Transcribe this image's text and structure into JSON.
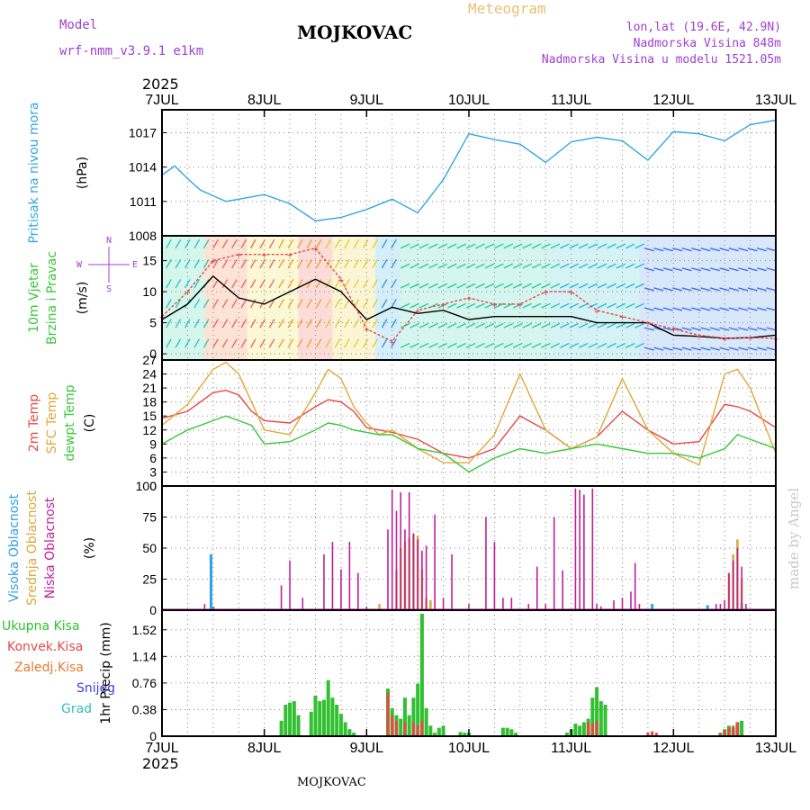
{
  "header": {
    "model_label": "Model",
    "model_name": "wrf-nmm_v3.9.1 e1km",
    "title": "MOJKOVAC",
    "meteogram": "Meteogram",
    "lonlat": "lon,lat (19.6E, 42.9N)",
    "elevation": "Nadmorska Visina 848m",
    "model_elevation": "Nadmorska Visina u modelu 1521.05m",
    "year_top": "2025",
    "year_bottom": "2025",
    "footer": "MOJKOVAC",
    "credit": "made by Angel"
  },
  "colors": {
    "pressure": "#30a8e0",
    "temp2m": "#e84848",
    "sfc": "#e0a838",
    "dewpt": "#38c838",
    "wind_speed": "#000000",
    "gust": "#e84848",
    "high_cloud": "#30a0e8",
    "mid_cloud": "#d8a838",
    "low_cloud": "#c0209a",
    "total_precip": "#30c030",
    "conv_precip": "#e84848",
    "frz_precip": "#e87830",
    "snow": "#4040e0",
    "hail": "#30c0c0"
  },
  "days": [
    "7JUL",
    "8JUL",
    "9JUL",
    "10JUL",
    "11JUL",
    "12JUL",
    "13JUL"
  ],
  "chart_data": [
    {
      "type": "line",
      "ylabel_lines": [
        "Pritisak na nivou mora",
        "(hPa)"
      ],
      "yticks": [
        1008,
        1011,
        1014,
        1017
      ],
      "ylim": [
        1008,
        1019
      ],
      "grid": true,
      "series": [
        {
          "x_hours": [
            0,
            3,
            6,
            9,
            12,
            15,
            18,
            24,
            30,
            36,
            42,
            48,
            54,
            60,
            66,
            72,
            78,
            84,
            90,
            96,
            102,
            108,
            114,
            120,
            126,
            132,
            138,
            144
          ],
          "values": [
            1013.3,
            1014.1,
            1013.0,
            1012.0,
            1011.5,
            1011.0,
            1011.2,
            1011.6,
            1010.8,
            1009.3,
            1009.6,
            1010.3,
            1011.2,
            1010.0,
            1012.9,
            1016.9,
            1016.4,
            1016.0,
            1014.4,
            1016.2,
            1016.6,
            1016.3,
            1014.6,
            1017.1,
            1016.9,
            1016.3,
            1017.7,
            1018.1
          ]
        }
      ]
    },
    {
      "type": "line",
      "ylabel_lines": [
        "10m Vjetar",
        "Brzina i Pravac",
        "(m/s)"
      ],
      "compass": [
        "N",
        "W",
        "E",
        "S"
      ],
      "yticks": [
        0,
        5,
        10,
        15
      ],
      "ylim": [
        -1,
        19
      ],
      "grid": true,
      "series": [
        {
          "name": "speed",
          "x_hours": [
            0,
            6,
            12,
            18,
            24,
            30,
            36,
            42,
            48,
            54,
            60,
            66,
            72,
            78,
            84,
            90,
            96,
            102,
            108,
            114,
            120,
            126,
            132,
            138,
            144
          ],
          "values": [
            5.5,
            8,
            12.5,
            9,
            8,
            10,
            12,
            10,
            5.5,
            7.5,
            6.5,
            7,
            5.5,
            6,
            6,
            6,
            6,
            5,
            5,
            5,
            3,
            2.8,
            2.5,
            2.6,
            3
          ]
        },
        {
          "name": "gust",
          "x_hours": [
            0,
            6,
            12,
            18,
            24,
            30,
            36,
            42,
            48,
            54,
            60,
            66,
            72,
            78,
            84,
            90,
            96,
            102,
            108,
            114,
            120,
            126,
            132,
            138,
            144
          ],
          "values": [
            6,
            10,
            15,
            16,
            16,
            16,
            17,
            12,
            4,
            2,
            7,
            8,
            9,
            8,
            8,
            10,
            10,
            7,
            6,
            5,
            4,
            3,
            2.5,
            2.6,
            2.5
          ]
        }
      ]
    },
    {
      "type": "line",
      "ylabel_lines": [
        "2m Temp",
        "SFC Temp",
        "dewpt Temp",
        "(C)"
      ],
      "yticks": [
        0,
        3,
        6,
        9,
        12,
        15,
        18,
        21,
        24,
        27
      ],
      "ylim": [
        0,
        27
      ],
      "grid": true,
      "series": [
        {
          "name": "2m Temp",
          "x_hours": [
            0,
            6,
            12,
            15,
            18,
            21,
            24,
            30,
            36,
            39,
            42,
            45,
            48,
            51,
            54,
            60,
            66,
            72,
            78,
            84,
            90,
            96,
            102,
            108,
            114,
            120,
            126,
            132,
            135,
            138,
            144
          ],
          "values": [
            14.5,
            16,
            20,
            20.5,
            19.5,
            16,
            14,
            13.5,
            17,
            18.5,
            18,
            16,
            12.5,
            12,
            11.5,
            10,
            7,
            6,
            8,
            15,
            12,
            8,
            10.5,
            16,
            12,
            9,
            9.5,
            17.5,
            17,
            16,
            12.5
          ]
        },
        {
          "name": "SFC Temp",
          "x_hours": [
            0,
            6,
            12,
            15,
            18,
            21,
            24,
            30,
            36,
            39,
            42,
            45,
            48,
            51,
            54,
            60,
            66,
            72,
            78,
            84,
            90,
            96,
            102,
            108,
            114,
            120,
            126,
            132,
            135,
            138,
            144
          ],
          "values": [
            13,
            17.5,
            25,
            26.5,
            24,
            18,
            12,
            11,
            20,
            25,
            23,
            17,
            13.5,
            11,
            12,
            8,
            5,
            5,
            11,
            24,
            12,
            8,
            10.5,
            23,
            12,
            7,
            4.5,
            24,
            25,
            21,
            7
          ]
        },
        {
          "name": "dewpt Temp",
          "x_hours": [
            0,
            6,
            12,
            15,
            18,
            21,
            24,
            30,
            36,
            39,
            42,
            45,
            48,
            51,
            54,
            60,
            66,
            72,
            78,
            84,
            90,
            96,
            102,
            108,
            114,
            120,
            126,
            132,
            135,
            138,
            144
          ],
          "values": [
            9,
            12,
            14,
            15,
            14,
            13,
            9,
            9.5,
            12,
            13.5,
            13,
            12,
            11.5,
            11,
            11,
            8,
            7,
            3,
            6,
            8,
            7,
            8,
            9,
            8,
            7,
            7,
            6,
            8,
            11,
            10,
            8
          ]
        }
      ]
    },
    {
      "type": "bar",
      "ylabel_lines": [
        "Visoka Oblacnost",
        "Srednja Oblacnost",
        "Niska Oblacnost",
        "(%)"
      ],
      "yticks": [
        0,
        25,
        50,
        75,
        100
      ],
      "ylim": [
        0,
        100
      ],
      "grid": true,
      "series": [
        {
          "name": "Visoka Oblacnost",
          "x_hours": [
            11.5,
            12,
            115,
            128,
            136
          ],
          "values": [
            45,
            3,
            5,
            4,
            6
          ]
        },
        {
          "name": "Srednja Oblacnost",
          "x_hours": [
            51,
            55,
            56,
            57,
            58,
            59,
            60,
            61,
            62,
            63,
            133,
            134,
            135,
            136
          ],
          "values": [
            5,
            32,
            50,
            55,
            58,
            61,
            60,
            33,
            10,
            8,
            30,
            45,
            57,
            25
          ]
        },
        {
          "name": "Niska Oblacnost",
          "x_hours": [
            10,
            28,
            30,
            33,
            38,
            40,
            42,
            44,
            46,
            48,
            53,
            54,
            55,
            56,
            57,
            58,
            59,
            60,
            61,
            62,
            64,
            66,
            68,
            72,
            76,
            78,
            80,
            82,
            86,
            88,
            90,
            92,
            94,
            97,
            98,
            99,
            101,
            102,
            103,
            106,
            108,
            110,
            111,
            112,
            130,
            131,
            132,
            133,
            134,
            135,
            136,
            137
          ],
          "values": [
            5,
            20,
            40,
            10,
            45,
            55,
            33,
            55,
            30,
            3,
            65,
            97,
            80,
            95,
            65,
            95,
            62,
            57,
            48,
            52,
            77,
            10,
            45,
            5,
            75,
            55,
            10,
            10,
            5,
            35,
            5,
            75,
            32,
            98,
            97,
            93,
            98,
            5,
            3,
            8,
            10,
            15,
            38,
            5,
            5,
            5,
            8,
            30,
            40,
            50,
            35,
            5
          ]
        }
      ]
    },
    {
      "type": "bar",
      "ylabel_lines": [
        "1hr Precip (mm)"
      ],
      "legend": [
        "Ukupna Kisa",
        "Konvek.Kisa",
        "Zaledj.Kisa",
        "Snijeg",
        "Grad"
      ],
      "yticks": [
        0,
        0.38,
        0.76,
        1.14,
        1.52
      ],
      "ylim": [
        0,
        1.8
      ],
      "grid": true,
      "series": [
        {
          "name": "Ukupna Kisa",
          "x_hours": [
            28,
            29,
            30,
            31,
            32,
            35,
            36,
            37,
            38,
            39,
            40,
            41,
            42,
            43,
            44,
            45,
            53,
            54,
            55,
            56,
            57,
            58,
            59,
            60,
            61,
            62,
            63,
            64,
            65,
            66,
            70,
            71,
            72,
            80,
            81,
            82,
            83,
            95,
            96,
            97,
            98,
            99,
            100,
            101,
            102,
            103,
            104,
            131,
            132,
            133,
            134,
            135,
            136
          ],
          "values": [
            0.22,
            0.45,
            0.48,
            0.5,
            0.3,
            0.35,
            0.58,
            0.5,
            0.52,
            0.8,
            0.55,
            0.45,
            0.32,
            0.2,
            0.1,
            0.05,
            0.68,
            0.4,
            0.3,
            0.25,
            0.55,
            0.3,
            0.55,
            0.75,
            1.75,
            0.4,
            0.15,
            0.05,
            0.12,
            0.15,
            0.06,
            0.05,
            0.05,
            0.12,
            0.12,
            0.1,
            0.05,
            0.05,
            0.1,
            0.18,
            0.15,
            0.2,
            0.25,
            0.55,
            0.7,
            0.5,
            0.45,
            0.05,
            0.1,
            0.15,
            0.12,
            0.2,
            0.22
          ]
        },
        {
          "name": "Konvek.Kisa",
          "x_hours": [
            53,
            54,
            55,
            57,
            59,
            60,
            61,
            100,
            101,
            102,
            114,
            115,
            116,
            131,
            132,
            133,
            134,
            135
          ],
          "values": [
            0.62,
            0.3,
            0.22,
            0.2,
            0.2,
            0.15,
            0.22,
            0.2,
            0.18,
            0.22,
            0.05,
            0.07,
            0.05,
            0.04,
            0.08,
            0.12,
            0.15,
            0.2
          ]
        }
      ]
    }
  ]
}
